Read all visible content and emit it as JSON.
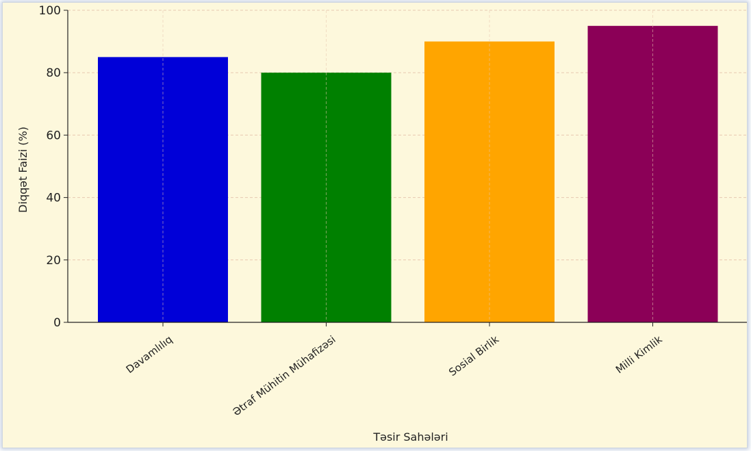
{
  "chart_data": {
    "type": "bar",
    "title": "",
    "xlabel": "Təsir Sahələri",
    "ylabel": "Diqqət Faizi (%)",
    "categories": [
      "Davamlılıq",
      "Ətraf Mühitin Mühafizəsi",
      "Sosial Birlik",
      "Milli Kimlik"
    ],
    "values": [
      85,
      80,
      90,
      95
    ],
    "colors": [
      "#0000d8",
      "#008000",
      "#ffa500",
      "#8b0057"
    ],
    "ylim": [
      0,
      100
    ],
    "yticks": [
      0,
      20,
      40,
      60,
      80,
      100
    ],
    "grid": true,
    "legend": "none",
    "background_color": "#fdf8dc",
    "grid_color": "#e8c8b0"
  }
}
